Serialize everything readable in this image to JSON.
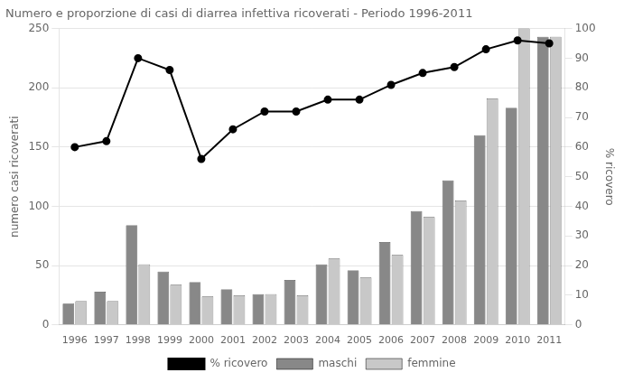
{
  "chart_data": {
    "type": "bar",
    "title": "Numero e proporzione di casi di diarrea infettiva ricoverati - Periodo 1996-2011",
    "categories": [
      "1996",
      "1997",
      "1998",
      "1999",
      "2000",
      "2001",
      "2002",
      "2003",
      "2004",
      "2005",
      "2006",
      "2007",
      "2008",
      "2009",
      "2010",
      "2011"
    ],
    "series": [
      {
        "name": "maschi",
        "color": "#888888",
        "values": [
          18,
          28,
          84,
          45,
          36,
          30,
          26,
          38,
          51,
          46,
          70,
          96,
          122,
          160,
          183,
          243
        ]
      },
      {
        "name": "femmine",
        "color": "#c8c8c8",
        "values": [
          20,
          20,
          51,
          34,
          24,
          25,
          26,
          25,
          56,
          40,
          59,
          91,
          105,
          191,
          250,
          243
        ]
      },
      {
        "name": "% ricovero",
        "type": "line",
        "axis": "y2",
        "color": "#000000",
        "marker": "circle",
        "values": [
          60,
          62,
          90,
          86,
          56,
          66,
          72,
          72,
          76,
          76,
          81,
          85,
          87,
          93,
          96,
          95
        ]
      }
    ],
    "ylabel": "numero casi ricoverati",
    "y2label": "% ricovero",
    "ylim": [
      0,
      250
    ],
    "yticks": [
      0,
      50,
      100,
      150,
      200,
      250
    ],
    "y2lim": [
      0,
      100
    ],
    "y2ticks": [
      0,
      10,
      20,
      30,
      40,
      50,
      60,
      70,
      80,
      90,
      100
    ],
    "grid": true,
    "legend": "bottom"
  }
}
